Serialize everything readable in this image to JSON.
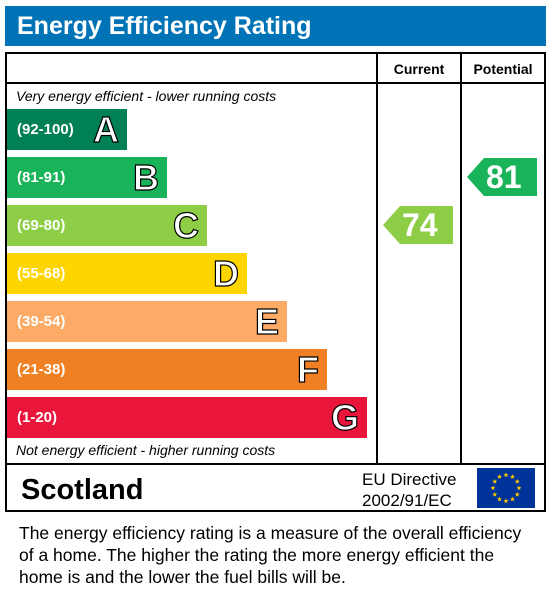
{
  "header": {
    "title": "Energy Efficiency Rating"
  },
  "columns": {
    "current": "Current",
    "potential": "Potential"
  },
  "notes": {
    "top": "Very energy efficient - lower running costs",
    "bottom": "Not energy efficient - higher running costs"
  },
  "country": "Scotland",
  "directive": {
    "line1": "EU Directive",
    "line2": "2002/91/EC"
  },
  "footer": {
    "text": "The energy efficiency rating is a measure of the overall efficiency of a home.  The higher the rating the more energy efficient the home is and the lower the fuel bills will be."
  },
  "chart_data": {
    "type": "bar",
    "title": "Energy Efficiency Rating",
    "categories": [
      "A",
      "B",
      "C",
      "D",
      "E",
      "F",
      "G"
    ],
    "bands": [
      {
        "letter": "A",
        "range": "(92-100)",
        "color": "#008054"
      },
      {
        "letter": "B",
        "range": "(81-91)",
        "color": "#19b459"
      },
      {
        "letter": "C",
        "range": "(69-80)",
        "color": "#8dce46"
      },
      {
        "letter": "D",
        "range": "(55-68)",
        "color": "#ffd500"
      },
      {
        "letter": "E",
        "range": "(39-54)",
        "color": "#fcaa65"
      },
      {
        "letter": "F",
        "range": "(21-38)",
        "color": "#ef8023"
      },
      {
        "letter": "G",
        "range": "(1-20)",
        "color": "#e9153b"
      }
    ],
    "current": {
      "value": "74",
      "band": "C",
      "color": "#8dce46"
    },
    "potential": {
      "value": "81",
      "band": "B",
      "color": "#19b459"
    }
  }
}
